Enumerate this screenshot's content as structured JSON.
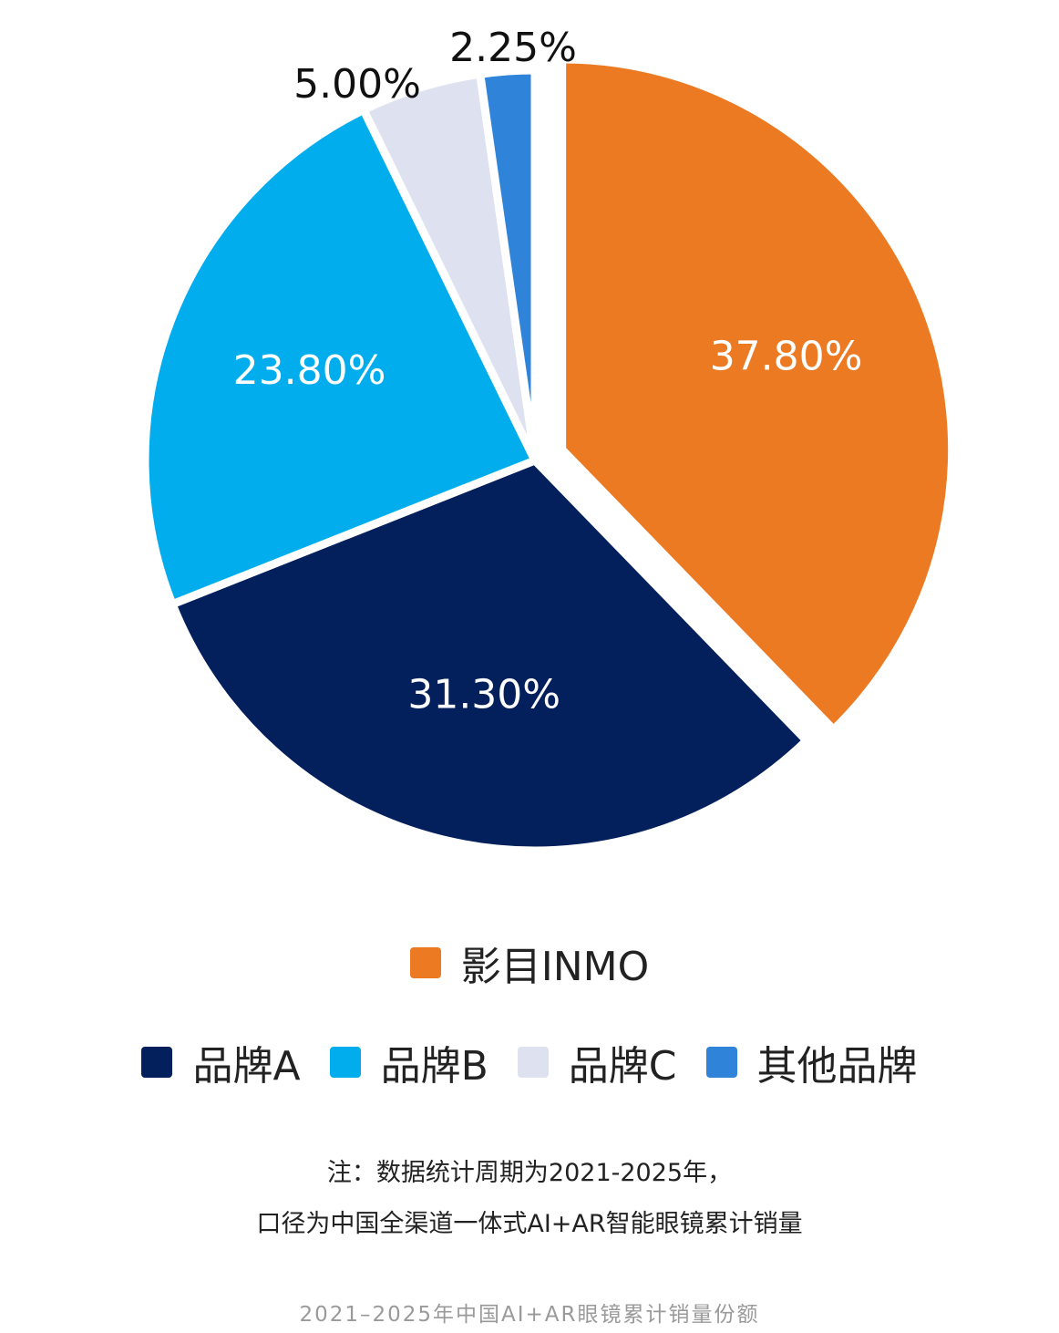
{
  "chart_data": {
    "type": "pie",
    "slices": [
      {
        "name": "影目INMO",
        "value": 37.8,
        "label": "37.80%",
        "color": "#EC7A23",
        "label_color": "#ffffff",
        "label_inside": true
      },
      {
        "name": "品牌A",
        "value": 31.3,
        "label": "31.30%",
        "color": "#03205C",
        "label_color": "#ffffff",
        "label_inside": true
      },
      {
        "name": "品牌B",
        "value": 23.8,
        "label": "23.80%",
        "color": "#02ADEE",
        "label_color": "#ffffff",
        "label_inside": true
      },
      {
        "name": "品牌C",
        "value": 5.0,
        "label": "5.00%",
        "color": "#DEE2F0",
        "label_color": "#111111",
        "label_inside": false
      },
      {
        "name": "其他品牌",
        "value": 2.25,
        "label": "2.25%",
        "color": "#2F84DA",
        "label_color": "#111111",
        "label_inside": false
      }
    ],
    "start_angle_deg": 0,
    "direction": "clockwise",
    "exploded_slice": "影目INMO",
    "legend_position": "bottom"
  },
  "legend": {
    "row1": [
      {
        "label": "影目INMO",
        "color": "#EC7A23"
      }
    ],
    "row2": [
      {
        "label": "品牌A",
        "color": "#03205C"
      },
      {
        "label": "品牌B",
        "color": "#02ADEE"
      },
      {
        "label": "品牌C",
        "color": "#DEE2F0"
      },
      {
        "label": "其他品牌",
        "color": "#2F84DA"
      }
    ]
  },
  "note": {
    "line1": "注：数据统计周期为2021-2025年，",
    "line2": "口径为中国全渠道一体式AI+AR智能眼镜累计销量"
  },
  "caption": "2021–2025年中国AI+AR眼镜累计销量份额"
}
